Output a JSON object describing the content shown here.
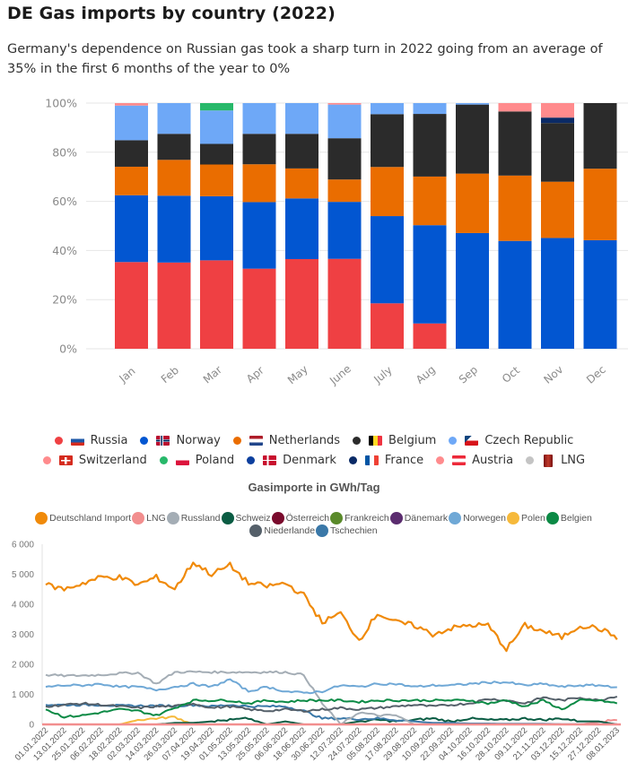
{
  "title": "DE Gas imports by country (2022)",
  "subtitle": "Germany's dependence on Russian gas took a sharp turn in 2022 going from an average of 35% in the first 6 months of the year to 0%",
  "chart_data": [
    {
      "type": "bar",
      "stacked": true,
      "title": "DE Gas imports by country (2022)",
      "categories": [
        "Jan",
        "Feb",
        "Mar",
        "Apr",
        "May",
        "June",
        "July",
        "Aug",
        "Sep",
        "Oct",
        "Nov",
        "Dec"
      ],
      "ylim": [
        0,
        100
      ],
      "yticks": [
        "0%",
        "20%",
        "40%",
        "60%",
        "80%",
        "100%"
      ],
      "grid": true,
      "legend_position": "bottom",
      "series": [
        {
          "name": "Russia",
          "color": "#ef4043",
          "values": [
            35.3,
            35.1,
            36.0,
            32.6,
            36.5,
            36.6,
            18.5,
            10.3,
            0,
            0,
            0,
            0
          ]
        },
        {
          "name": "Norway",
          "color": "#0256d1",
          "values": [
            27.2,
            27.2,
            26.1,
            27.1,
            24.7,
            23.2,
            35.5,
            40.0,
            47.1,
            43.9,
            45.1,
            44.2
          ]
        },
        {
          "name": "Netherlands",
          "color": "#ea6d00",
          "values": [
            11.6,
            14.6,
            12.9,
            15.4,
            12.2,
            9.1,
            20.0,
            19.8,
            24.2,
            26.6,
            22.9,
            29.1
          ]
        },
        {
          "name": "Belgium",
          "color": "#2b2b2b",
          "values": [
            10.8,
            10.6,
            8.4,
            12.4,
            14.1,
            16.8,
            21.5,
            25.5,
            28.1,
            26.1,
            23.9,
            26.7
          ]
        },
        {
          "name": "Czech Republic",
          "color": "#6ea8f7",
          "values": [
            14.1,
            12.5,
            13.6,
            12.5,
            12.5,
            13.7,
            4.5,
            4.4,
            0.6,
            0,
            0,
            0
          ]
        },
        {
          "name": "Switzerland",
          "color": "#ff8b8d",
          "values": [
            0,
            0,
            0,
            0,
            0,
            0,
            0,
            0,
            0,
            0,
            0,
            0
          ]
        },
        {
          "name": "Poland",
          "color": "#27b86a",
          "values": [
            0,
            0,
            3.0,
            0,
            0,
            0,
            0,
            0,
            0,
            0,
            0,
            0
          ]
        },
        {
          "name": "Denmark",
          "color": "#0c3f9e",
          "values": [
            0,
            0,
            0,
            0,
            0,
            0,
            0,
            0,
            0,
            0,
            0,
            0
          ]
        },
        {
          "name": "France",
          "color": "#0a2a66",
          "values": [
            0,
            0,
            0,
            0,
            0,
            0,
            0,
            0,
            0,
            0,
            2.2,
            0
          ]
        },
        {
          "name": "Austria",
          "color": "#ff8b8d",
          "values": [
            1.0,
            0,
            0,
            0,
            0,
            0.6,
            0,
            0,
            0,
            3.4,
            5.9,
            0
          ]
        },
        {
          "name": "LNG",
          "color": "#c4c4c4",
          "values": [
            0,
            0,
            0,
            0,
            0,
            0,
            0,
            0,
            0,
            0,
            0,
            0
          ]
        }
      ],
      "legend": [
        {
          "name": "Russia",
          "dot": "#ef4043",
          "flag": "russia"
        },
        {
          "name": "Norway",
          "dot": "#0256d1",
          "flag": "norway"
        },
        {
          "name": "Netherlands",
          "dot": "#ea6d00",
          "flag": "netherlands"
        },
        {
          "name": "Belgium",
          "dot": "#2b2b2b",
          "flag": "belgium"
        },
        {
          "name": "Czech Republic",
          "dot": "#6ea8f7",
          "flag": "czech"
        },
        {
          "name": "Switzerland",
          "dot": "#ff8b8d",
          "flag": "switzerland"
        },
        {
          "name": "Poland",
          "dot": "#27b86a",
          "flag": "poland"
        },
        {
          "name": "Denmark",
          "dot": "#0c3f9e",
          "flag": "denmark"
        },
        {
          "name": "France",
          "dot": "#0a2a66",
          "flag": "france"
        },
        {
          "name": "Austria",
          "dot": "#ff8b8d",
          "flag": "austria"
        },
        {
          "name": "LNG",
          "dot": "#c4c4c4",
          "flag": "lng-barrel"
        }
      ]
    },
    {
      "type": "line",
      "title": "Gasimporte in GWh/Tag",
      "ylim": [
        0,
        6000
      ],
      "yticks": [
        "0",
        "1 000",
        "2 000",
        "3 000",
        "4 000",
        "5 000",
        "6 000"
      ],
      "ytick_values": [
        0,
        1000,
        2000,
        3000,
        4000,
        5000,
        6000
      ],
      "legend_position": "top",
      "x": [
        "01.01.2022",
        "13.01.2022",
        "25.01.2022",
        "06.02.2022",
        "18.02.2022",
        "02.03.2022",
        "14.03.2022",
        "26.03.2022",
        "07.04.2022",
        "19.04.2022",
        "01.05.2022",
        "13.05.2022",
        "25.05.2022",
        "06.06.2022",
        "18.06.2022",
        "30.06.2022",
        "12.07.2022",
        "24.07.2022",
        "05.08.2022",
        "17.08.2022",
        "29.08.2022",
        "10.09.2022",
        "22.09.2022",
        "04.10.2022",
        "16.10.2022",
        "28.10.2022",
        "09.11.2022",
        "21.11.2022",
        "03.12.2022",
        "15.12.2022",
        "27.12.2022",
        "08.01.2023"
      ],
      "series": [
        {
          "name": "Deutschland Import",
          "color": "#f08a0a",
          "values": [
            4650,
            4500,
            4700,
            4900,
            4900,
            4650,
            4900,
            4500,
            5400,
            5000,
            5300,
            4700,
            4600,
            4700,
            4300,
            3400,
            3700,
            2800,
            3700,
            3400,
            3300,
            3000,
            3200,
            3300,
            3300,
            2500,
            3300,
            3100,
            2900,
            3300,
            3200,
            2900
          ]
        },
        {
          "name": "LNG",
          "color": "#f28e8e",
          "values": [
            0,
            0,
            0,
            0,
            0,
            0,
            0,
            0,
            0,
            0,
            0,
            0,
            0,
            0,
            0,
            0,
            0,
            0,
            0,
            0,
            0,
            0,
            0,
            0,
            0,
            0,
            0,
            0,
            0,
            0,
            80,
            150
          ]
        },
        {
          "name": "Russland",
          "color": "#a4adb5",
          "values": [
            1650,
            1620,
            1630,
            1650,
            1700,
            1720,
            1350,
            1740,
            1750,
            1740,
            1740,
            1740,
            1740,
            1740,
            1650,
            700,
            0,
            400,
            300,
            300,
            0,
            0,
            0,
            0,
            0,
            0,
            0,
            0,
            0,
            0,
            0,
            0
          ]
        },
        {
          "name": "Schweiz",
          "color": "#0a5c43",
          "values": [
            0,
            0,
            0,
            0,
            0,
            0,
            0,
            50,
            50,
            100,
            150,
            200,
            0,
            100,
            0,
            0,
            0,
            100,
            150,
            100,
            150,
            200,
            100,
            200,
            150,
            150,
            200,
            150,
            200,
            100,
            100,
            0
          ]
        },
        {
          "name": "Österreich",
          "color": "#7a0b2d",
          "values": [
            0,
            0,
            0,
            0,
            0,
            0,
            0,
            0,
            0,
            0,
            0,
            0,
            0,
            0,
            0,
            0,
            0,
            0,
            0,
            0,
            0,
            0,
            0,
            0,
            0,
            0,
            0,
            0,
            0,
            0,
            0,
            0
          ]
        },
        {
          "name": "Frankreich",
          "color": "#5a8a2a",
          "values": [
            0,
            0,
            0,
            0,
            0,
            0,
            0,
            0,
            0,
            0,
            0,
            0,
            0,
            0,
            0,
            0,
            0,
            0,
            0,
            0,
            0,
            0,
            0,
            0,
            0,
            0,
            0,
            0,
            0,
            0,
            0,
            0
          ]
        },
        {
          "name": "Dänemark",
          "color": "#5b2c6f",
          "values": [
            0,
            0,
            0,
            0,
            0,
            0,
            0,
            0,
            0,
            0,
            0,
            0,
            0,
            0,
            0,
            0,
            0,
            0,
            0,
            0,
            0,
            0,
            0,
            0,
            0,
            0,
            0,
            0,
            0,
            0,
            0,
            0
          ]
        },
        {
          "name": "Norwegen",
          "color": "#6fa8d6",
          "values": [
            1250,
            1300,
            1300,
            1350,
            1250,
            1250,
            1150,
            1250,
            1350,
            1250,
            1500,
            1100,
            1250,
            1100,
            1050,
            1100,
            1300,
            1250,
            1350,
            1350,
            1250,
            1300,
            1300,
            1350,
            1400,
            1400,
            1300,
            1350,
            1250,
            1300,
            1300,
            1250
          ]
        },
        {
          "name": "Polen",
          "color": "#f6b93b",
          "values": [
            0,
            0,
            0,
            0,
            0,
            150,
            200,
            250,
            0,
            0,
            0,
            0,
            0,
            0,
            0,
            0,
            0,
            0,
            0,
            0,
            0,
            0,
            0,
            0,
            0,
            0,
            0,
            0,
            0,
            0,
            0,
            0
          ]
        },
        {
          "name": "Belgien",
          "color": "#0b8a45",
          "values": [
            500,
            250,
            300,
            400,
            500,
            450,
            300,
            550,
            800,
            800,
            800,
            700,
            800,
            750,
            800,
            800,
            800,
            750,
            800,
            800,
            800,
            800,
            800,
            800,
            700,
            800,
            600,
            800,
            500,
            800,
            800,
            700
          ]
        },
        {
          "name": "Niederlande",
          "color": "#55606a",
          "values": [
            600,
            650,
            700,
            650,
            600,
            550,
            600,
            600,
            700,
            550,
            600,
            500,
            450,
            500,
            450,
            500,
            550,
            500,
            550,
            600,
            650,
            600,
            650,
            700,
            850,
            800,
            700,
            900,
            800,
            900,
            800,
            950
          ]
        },
        {
          "name": "Tschechien",
          "color": "#3a78a8",
          "values": [
            650,
            650,
            650,
            650,
            620,
            620,
            620,
            620,
            650,
            600,
            650,
            600,
            600,
            600,
            450,
            200,
            200,
            180,
            200,
            150,
            100,
            50,
            50,
            30,
            30,
            20,
            20,
            20,
            10,
            10,
            10,
            10
          ]
        }
      ]
    }
  ]
}
